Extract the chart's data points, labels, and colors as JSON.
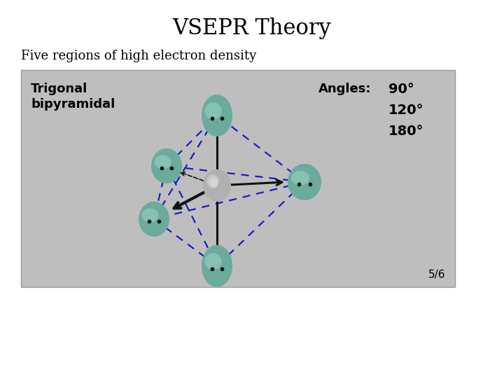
{
  "title": "VSEPR Theory",
  "subtitle": "Five regions of high electron density",
  "title_fontsize": 22,
  "subtitle_fontsize": 13,
  "bg_color": "#ffffff",
  "box_color": "#bebebe",
  "label_bold": "Trigonal\nbipyramidal",
  "angles_label": "Angles:",
  "angles_values": [
    "90°",
    "120°",
    "180°"
  ],
  "page_num": "5/6",
  "center_atom_color": "#aaaaaa",
  "ligand_color": "#6aab9c",
  "ligand_highlight": "#9fd4c8",
  "dashed_color": "#1a1acc",
  "bond_color": "#111111"
}
